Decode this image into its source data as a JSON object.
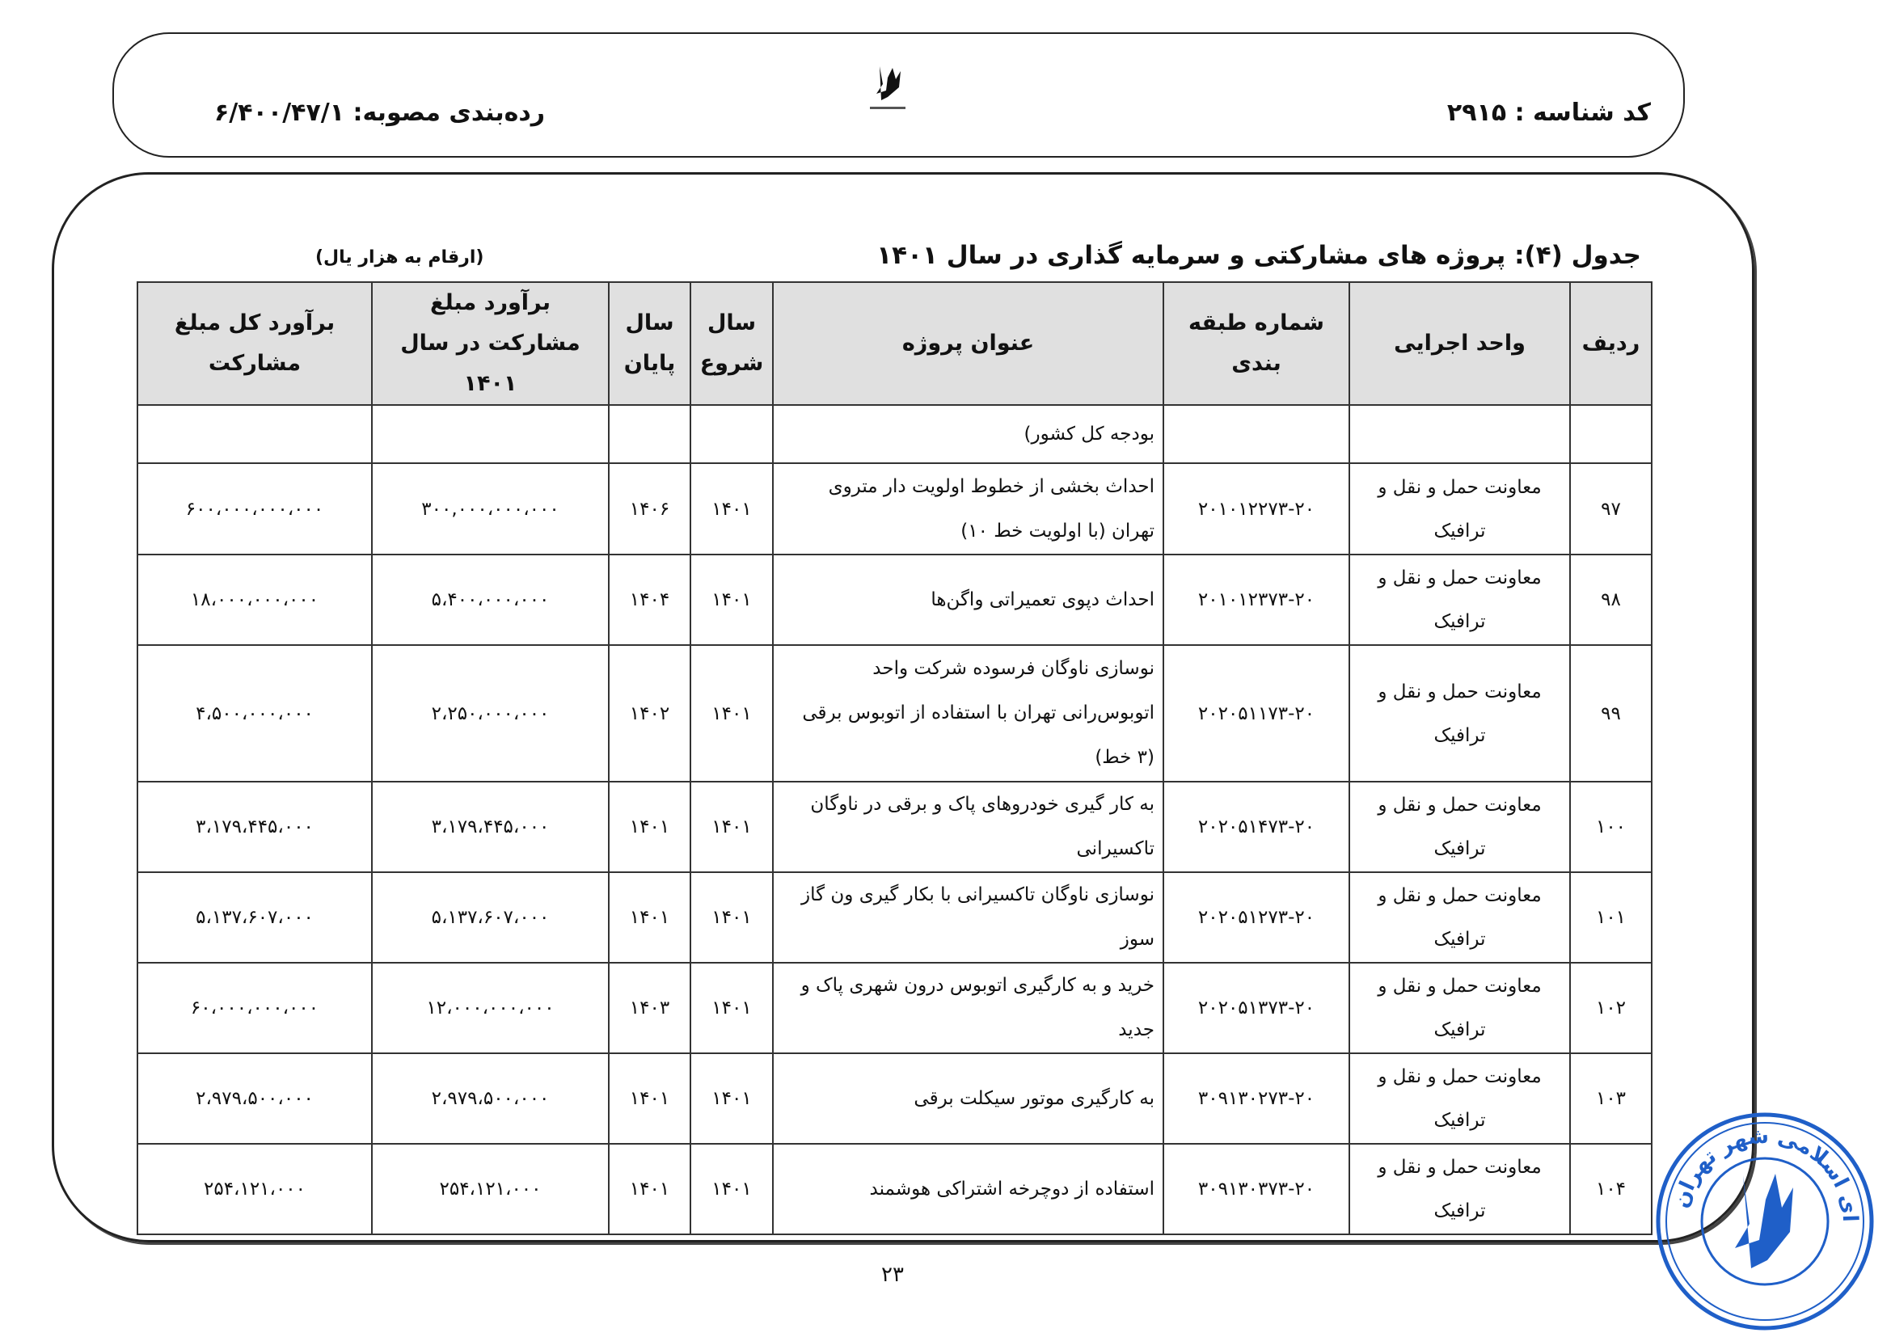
{
  "header": {
    "id_code": "کد شناسه : ۲۹۱۵",
    "classification": "رده‌بندی مصوبه: ۶/۴۰۰/۴۷/۱",
    "logo_text": "شورای اسلامی شهر تهران"
  },
  "table_title": "جدول (۴): پروژه های مشارکتی و سرمایه گذاری در سال ۱۴۰۱",
  "unit_note": "(ارقام به هزار یال)",
  "columns": [
    "ردیف",
    "واحد اجرایی",
    "شماره طبقه بندی",
    "عنوان پروژه",
    "سال شروع",
    "سال پایان",
    "برآورد مبلغ مشارکت در سال ۱۴۰۱",
    "برآورد کل مبلغ مشارکت"
  ],
  "rows": [
    {
      "no": "",
      "unit": "",
      "code": "",
      "title": "بودجه کل کشور)",
      "start": "",
      "end": "",
      "amount_1401": "",
      "total": ""
    },
    {
      "no": "۹۷",
      "unit": "معاونت حمل و نقل و ترافیک",
      "code": "۲۰۱۰۱۲۲۷۳-۲۰",
      "title": "احداث بخشی از خطوط اولویت دار متروی تهران (با اولویت خط ۱۰)",
      "start": "۱۴۰۱",
      "end": "۱۴۰۶",
      "amount_1401": "۳۰۰,۰۰۰،۰۰۰،۰۰۰",
      "total": "۶۰۰،۰۰۰،۰۰۰،۰۰۰"
    },
    {
      "no": "۹۸",
      "unit": "معاونت حمل و نقل و ترافیک",
      "code": "۲۰۱۰۱۲۳۷۳-۲۰",
      "title": "احداث دپوی تعمیراتی واگن‌ها",
      "start": "۱۴۰۱",
      "end": "۱۴۰۴",
      "amount_1401": "۵،۴۰۰،۰۰۰،۰۰۰",
      "total": "۱۸،۰۰۰،۰۰۰،۰۰۰"
    },
    {
      "no": "۹۹",
      "unit": "معاونت حمل و نقل و ترافیک",
      "code": "۲۰۲۰۵۱۱۷۳-۲۰",
      "title": "نوسازی ناوگان فرسوده شرکت واحد اتوبوس‌رانی تهران با استفاده از اتوبوس برقی (۳ خط)",
      "start": "۱۴۰۱",
      "end": "۱۴۰۲",
      "amount_1401": "۲،۲۵۰،۰۰۰،۰۰۰",
      "total": "۴،۵۰۰،۰۰۰،۰۰۰"
    },
    {
      "no": "۱۰۰",
      "unit": "معاونت حمل و نقل و ترافیک",
      "code": "۲۰۲۰۵۱۴۷۳-۲۰",
      "title": "به کار گیری خودروهای پاک و برقی در ناوگان تاکسیرانی",
      "start": "۱۴۰۱",
      "end": "۱۴۰۱",
      "amount_1401": "۳،۱۷۹،۴۴۵،۰۰۰",
      "total": "۳،۱۷۹،۴۴۵،۰۰۰"
    },
    {
      "no": "۱۰۱",
      "unit": "معاونت حمل و نقل و ترافیک",
      "code": "۲۰۲۰۵۱۲۷۳-۲۰",
      "title": "نوسازی ناوگان تاکسیرانی با بکار گیری ون گاز سوز",
      "start": "۱۴۰۱",
      "end": "۱۴۰۱",
      "amount_1401": "۵،۱۳۷،۶۰۷،۰۰۰",
      "total": "۵،۱۳۷،۶۰۷،۰۰۰"
    },
    {
      "no": "۱۰۲",
      "unit": "معاونت حمل و نقل و ترافیک",
      "code": "۲۰۲۰۵۱۳۷۳-۲۰",
      "title": "خرید و به کارگیری اتوبوس درون شهری پاک و جدید",
      "start": "۱۴۰۱",
      "end": "۱۴۰۳",
      "amount_1401": "۱۲،۰۰۰،۰۰۰،۰۰۰",
      "total": "۶۰،۰۰۰،۰۰۰،۰۰۰"
    },
    {
      "no": "۱۰۳",
      "unit": "معاونت حمل و نقل و ترافیک",
      "code": "۳۰۹۱۳۰۲۷۳-۲۰",
      "title": "به کارگیری موتور سیکلت برقی",
      "start": "۱۴۰۱",
      "end": "۱۴۰۱",
      "amount_1401": "۲،۹۷۹،۵۰۰،۰۰۰",
      "total": "۲،۹۷۹،۵۰۰،۰۰۰"
    },
    {
      "no": "۱۰۴",
      "unit": "معاونت حمل و نقل و ترافیک",
      "code": "۳۰۹۱۳۰۳۷۳-۲۰",
      "title": "استفاده از دوچرخه اشتراکی هوشمند",
      "start": "۱۴۰۱",
      "end": "۱۴۰۱",
      "amount_1401": "۲۵۴،۱۲۱،۰۰۰",
      "total": "۲۵۴،۱۲۱،۰۰۰"
    }
  ],
  "page_number": "۲۳",
  "stamp_text": "اداره مصوبات شورای اسلامی شهر تهران",
  "colors": {
    "header_bg": "#e0e0e0",
    "stamp": "#1f5fc8"
  }
}
